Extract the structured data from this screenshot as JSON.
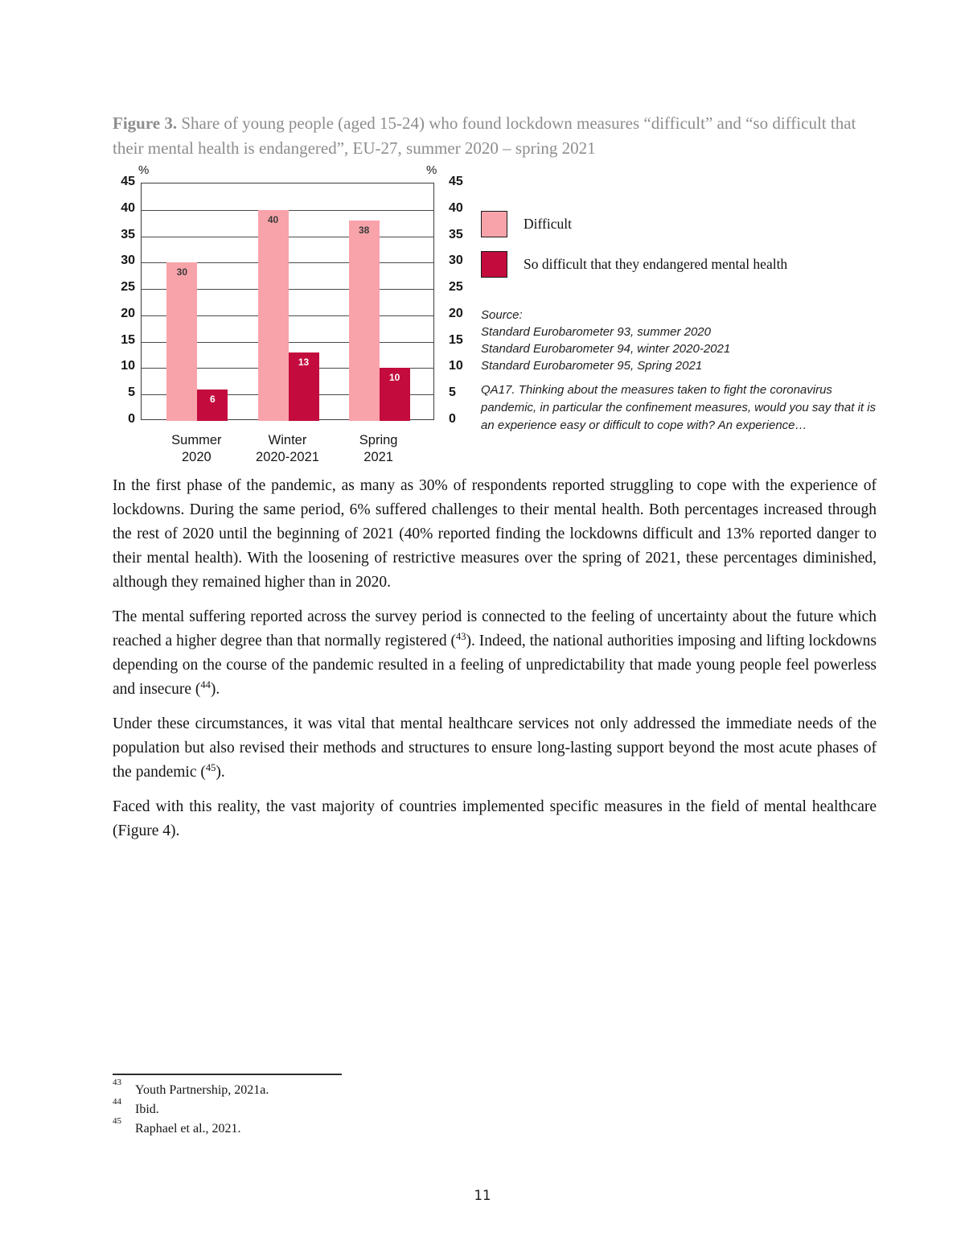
{
  "page": {
    "number": "11"
  },
  "figure": {
    "label": "Figure 3.",
    "caption": " Share of young people (aged 15-24) who found lockdown measures “difficult” and “so difficult that their mental health is endangered”, EU-27, summer 2020 – spring 2021"
  },
  "chart_data": {
    "type": "bar",
    "title": "Share of young people (aged 15-24) who found lockdown measures “difficult” and “so difficult that their mental health is endangered”, EU-27, summer 2020 – spring 2021",
    "categories": [
      [
        "Summer",
        "2020"
      ],
      [
        "Winter",
        "2020-2021"
      ],
      [
        "Spring",
        "2021"
      ]
    ],
    "series": [
      {
        "name": "Difficult",
        "values": [
          30,
          40,
          38
        ],
        "color": "#f8a3a9",
        "label_color": "#3a3a3a"
      },
      {
        "name": "So difficult that they endangered mental health",
        "values": [
          6,
          13,
          10
        ],
        "color": "#c30b3d",
        "label_color": "#ffffff"
      }
    ],
    "ylim": [
      0,
      45
    ],
    "yticks": [
      0,
      5,
      10,
      15,
      20,
      25,
      30,
      35,
      40,
      45
    ],
    "axis_unit": "%",
    "grid": "horizontal",
    "legend_position": "right",
    "value_labels": true
  },
  "source_block": {
    "lines": [
      "Source:",
      "Standard Eurobarometer 93, summer 2020",
      "Standard Eurobarometer 94, winter 2020-2021",
      "Standard Eurobarometer 95, Spring 2021"
    ],
    "question_note": "QA17. Thinking about the measures taken to fight the coronavirus pandemic, in particular the confinement measures, would you say that it is an experience easy or difficult to cope with? An experience…"
  },
  "body": {
    "paragraphs": [
      [
        {
          "t": "In the first phase of the pandemic, as many as 30% of respondents reported struggling to cope with the experience of lockdowns. During the same period, 6% suffered challenges to their mental health. Both percentages increased through the rest of 2020 until the beginning of 2021 (40% reported finding the lockdowns difficult and 13% reported danger to their mental health). With the loosening of restrictive measures over the spring of 2021, these percentages diminished, although they remained higher than in 2020."
        }
      ],
      [
        {
          "t": "The mental suffering reported across the survey period is connected to the feeling of uncertainty about the future which reached a higher degree than that normally registered ("
        },
        {
          "sup": "43"
        },
        {
          "t": "). Indeed, the national authorities imposing and lifting lockdowns depending on the course of the pandemic resulted in a feeling of unpredictability that made young people feel powerless and insecure ("
        },
        {
          "sup": "44"
        },
        {
          "t": ")."
        }
      ],
      [
        {
          "t": "Under these circumstances, it was vital that mental healthcare services not only addressed the immediate needs of the population but also revised their methods and structures to ensure long-lasting support beyond the most acute phases of the pandemic ("
        },
        {
          "sup": "45"
        },
        {
          "t": ")."
        }
      ],
      [
        {
          "t": "Faced with this reality, the vast majority of countries implemented specific measures in the field of mental healthcare (Figure 4)."
        }
      ]
    ]
  },
  "footnotes": [
    {
      "num": "43",
      "text": "Youth Partnership, 2021a."
    },
    {
      "num": "44",
      "text": "Ibid."
    },
    {
      "num": "45",
      "text": "Raphael et al., 2021."
    }
  ]
}
